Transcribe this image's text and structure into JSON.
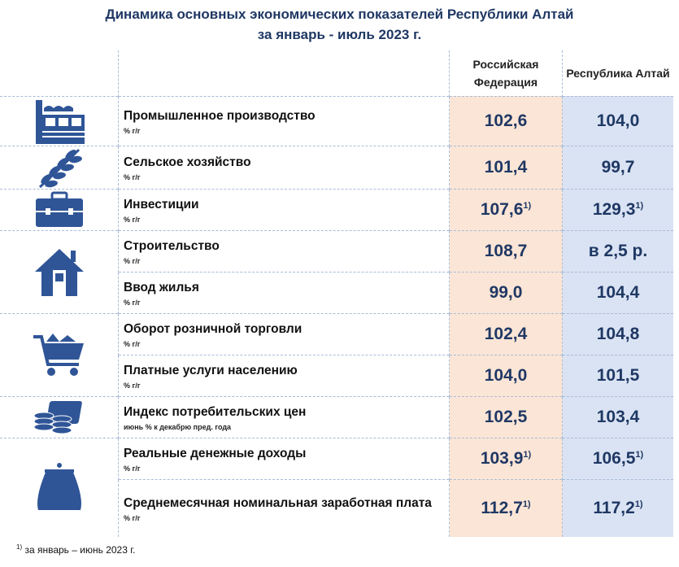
{
  "title": {
    "line1": "Динамика основных экономических показателей Республики Алтай",
    "line2": "за январь - июль 2023 г."
  },
  "columns": {
    "rf": "Российская Федерация",
    "ra": "Республика Алтай"
  },
  "rows": [
    {
      "icon": "factory-icon",
      "label": "Промышленное производство",
      "unit": "% г/г",
      "rf": "102,6",
      "rf_note": "",
      "ra": "104,0",
      "ra_note": ""
    },
    {
      "icon": "wheat-icon",
      "label": "Сельское хозяйство",
      "unit": "% г/г",
      "rf": "101,4",
      "rf_note": "",
      "ra": "99,7",
      "ra_note": ""
    },
    {
      "icon": "briefcase-icon",
      "label": "Инвестиции",
      "unit": "% г/г",
      "rf": "107,6",
      "rf_note": "1)",
      "ra": "129,3",
      "ra_note": "1)"
    },
    {
      "icon": "house-icon",
      "label": "Строительство",
      "unit": "% г/г",
      "rf": "108,7",
      "rf_note": "",
      "ra": "в 2,5 р.",
      "ra_note": ""
    },
    {
      "icon": "",
      "label": "Ввод жилья",
      "unit": "% г/г",
      "rf": "99,0",
      "rf_note": "",
      "ra": "104,4",
      "ra_note": ""
    },
    {
      "icon": "cart-icon",
      "label": "Оборот розничной торговли",
      "unit": "% г/г",
      "rf": "102,4",
      "rf_note": "",
      "ra": "104,8",
      "ra_note": ""
    },
    {
      "icon": "",
      "label": "Платные услуги населению",
      "unit": "% г/г",
      "rf": "104,0",
      "rf_note": "",
      "ra": "101,5",
      "ra_note": ""
    },
    {
      "icon": "coins-icon",
      "label": "Индекс потребительских цен",
      "unit": "июнь % к декабрю пред. года",
      "rf": "102,5",
      "rf_note": "",
      "ra": "103,4",
      "ra_note": ""
    },
    {
      "icon": "purse-icon",
      "label": "Реальные денежные доходы",
      "unit": "% г/г",
      "rf": "103,9",
      "rf_note": "1)",
      "ra": "106,5",
      "ra_note": "1)"
    },
    {
      "icon": "",
      "label": "Среднемесячная номинальная заработная плата",
      "unit": "% г/г",
      "rf": "112,7",
      "rf_note": "1)",
      "ra": "117,2",
      "ra_note": "1)"
    }
  ],
  "footnote": {
    "mark": "1)",
    "text": " за январь – июнь 2023 г."
  },
  "colors": {
    "rf_bg": "#fbe5d6",
    "ra_bg": "#dae3f3",
    "text": "#1f3864",
    "icon": "#2f5597"
  }
}
